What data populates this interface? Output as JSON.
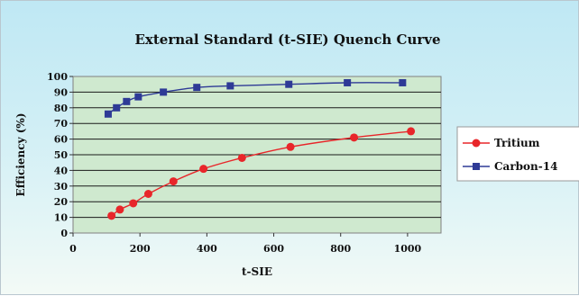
{
  "chart_data": {
    "type": "scatter",
    "title": "External Standard (t-SIE) Quench Curve",
    "xlabel": "t-SIE",
    "ylabel": "Efficiency (%)",
    "xlim": [
      0,
      1100
    ],
    "ylim": [
      0,
      100
    ],
    "xticks": [
      0,
      200,
      400,
      600,
      800,
      1000
    ],
    "yticks": [
      0,
      10,
      20,
      30,
      40,
      50,
      60,
      70,
      80,
      90,
      100
    ],
    "grid": "horizontal",
    "legend_position": "right",
    "series": [
      {
        "name": "Tritium",
        "color": "#e8262a",
        "marker": "circle",
        "x": [
          115,
          140,
          180,
          225,
          300,
          390,
          505,
          650,
          840,
          1010
        ],
        "y": [
          11,
          15,
          19,
          25,
          33,
          41,
          48,
          55,
          61,
          65
        ]
      },
      {
        "name": "Carbon-14",
        "color": "#2e3a96",
        "marker": "square",
        "x": [
          105,
          130,
          160,
          195,
          270,
          370,
          470,
          645,
          820,
          985
        ],
        "y": [
          76,
          80,
          84,
          87,
          90,
          93,
          94,
          95,
          96,
          96
        ]
      }
    ]
  }
}
